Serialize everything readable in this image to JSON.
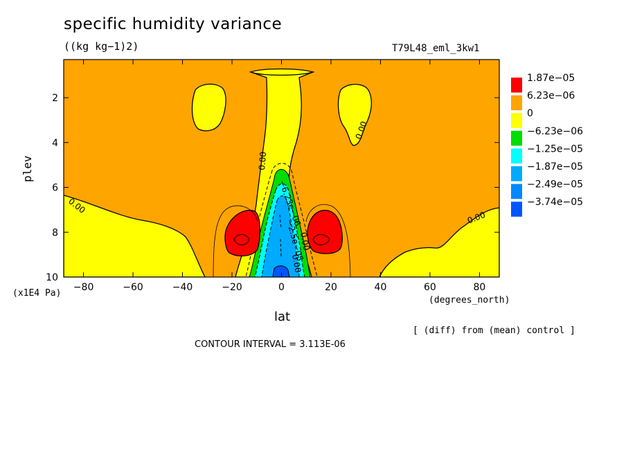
{
  "chart_data": {
    "type": "heatmap",
    "title": "specific humidity variance",
    "units": "((kg kg−1)2)",
    "experiment": "T79L48_eml_3kw1",
    "xlabel": "lat",
    "ylabel": "plev",
    "x_units": "(degrees_north)",
    "y_units": "(x1E4 Pa)",
    "xlim": [
      -88,
      88
    ],
    "ylim": [
      0.3,
      10
    ],
    "y_inverted": true,
    "x_ticks": [
      -80,
      -60,
      -40,
      -20,
      0,
      20,
      40,
      60,
      80
    ],
    "x_tick_labels": [
      "−80",
      "−60",
      "−40",
      "−20",
      "0",
      "20",
      "40",
      "60",
      "80"
    ],
    "y_ticks": [
      2,
      4,
      6,
      8,
      10
    ],
    "y_tick_labels": [
      "2",
      "4",
      "6",
      "8",
      "10"
    ],
    "note": "[ (diff) from (mean) control ]",
    "contour_interval": "CONTOUR INTERVAL = 3.113E-06",
    "legend": {
      "placement": "right",
      "entries": [
        {
          "label": "1.87e−05",
          "color": "#ff0000"
        },
        {
          "label": "6.23e−06",
          "color": "#ffa500"
        },
        {
          "label": "0",
          "color": "#ffff00"
        },
        {
          "label": "−6.23e−06",
          "color": "#00dd00"
        },
        {
          "label": "−1.25e−05",
          "color": "#00ffff"
        },
        {
          "label": "−1.87e−05",
          "color": "#00aaff"
        },
        {
          "label": "−2.49e−05",
          "color": "#0088ff"
        },
        {
          "label": "−3.74e−05",
          "color": "#0055ff"
        }
      ]
    },
    "contour_labels": [
      "0.00",
      "0.00",
      "0.00",
      "0.00",
      "−6.23e−06",
      "−2.5e−05",
      "0.00",
      "0.00"
    ]
  }
}
